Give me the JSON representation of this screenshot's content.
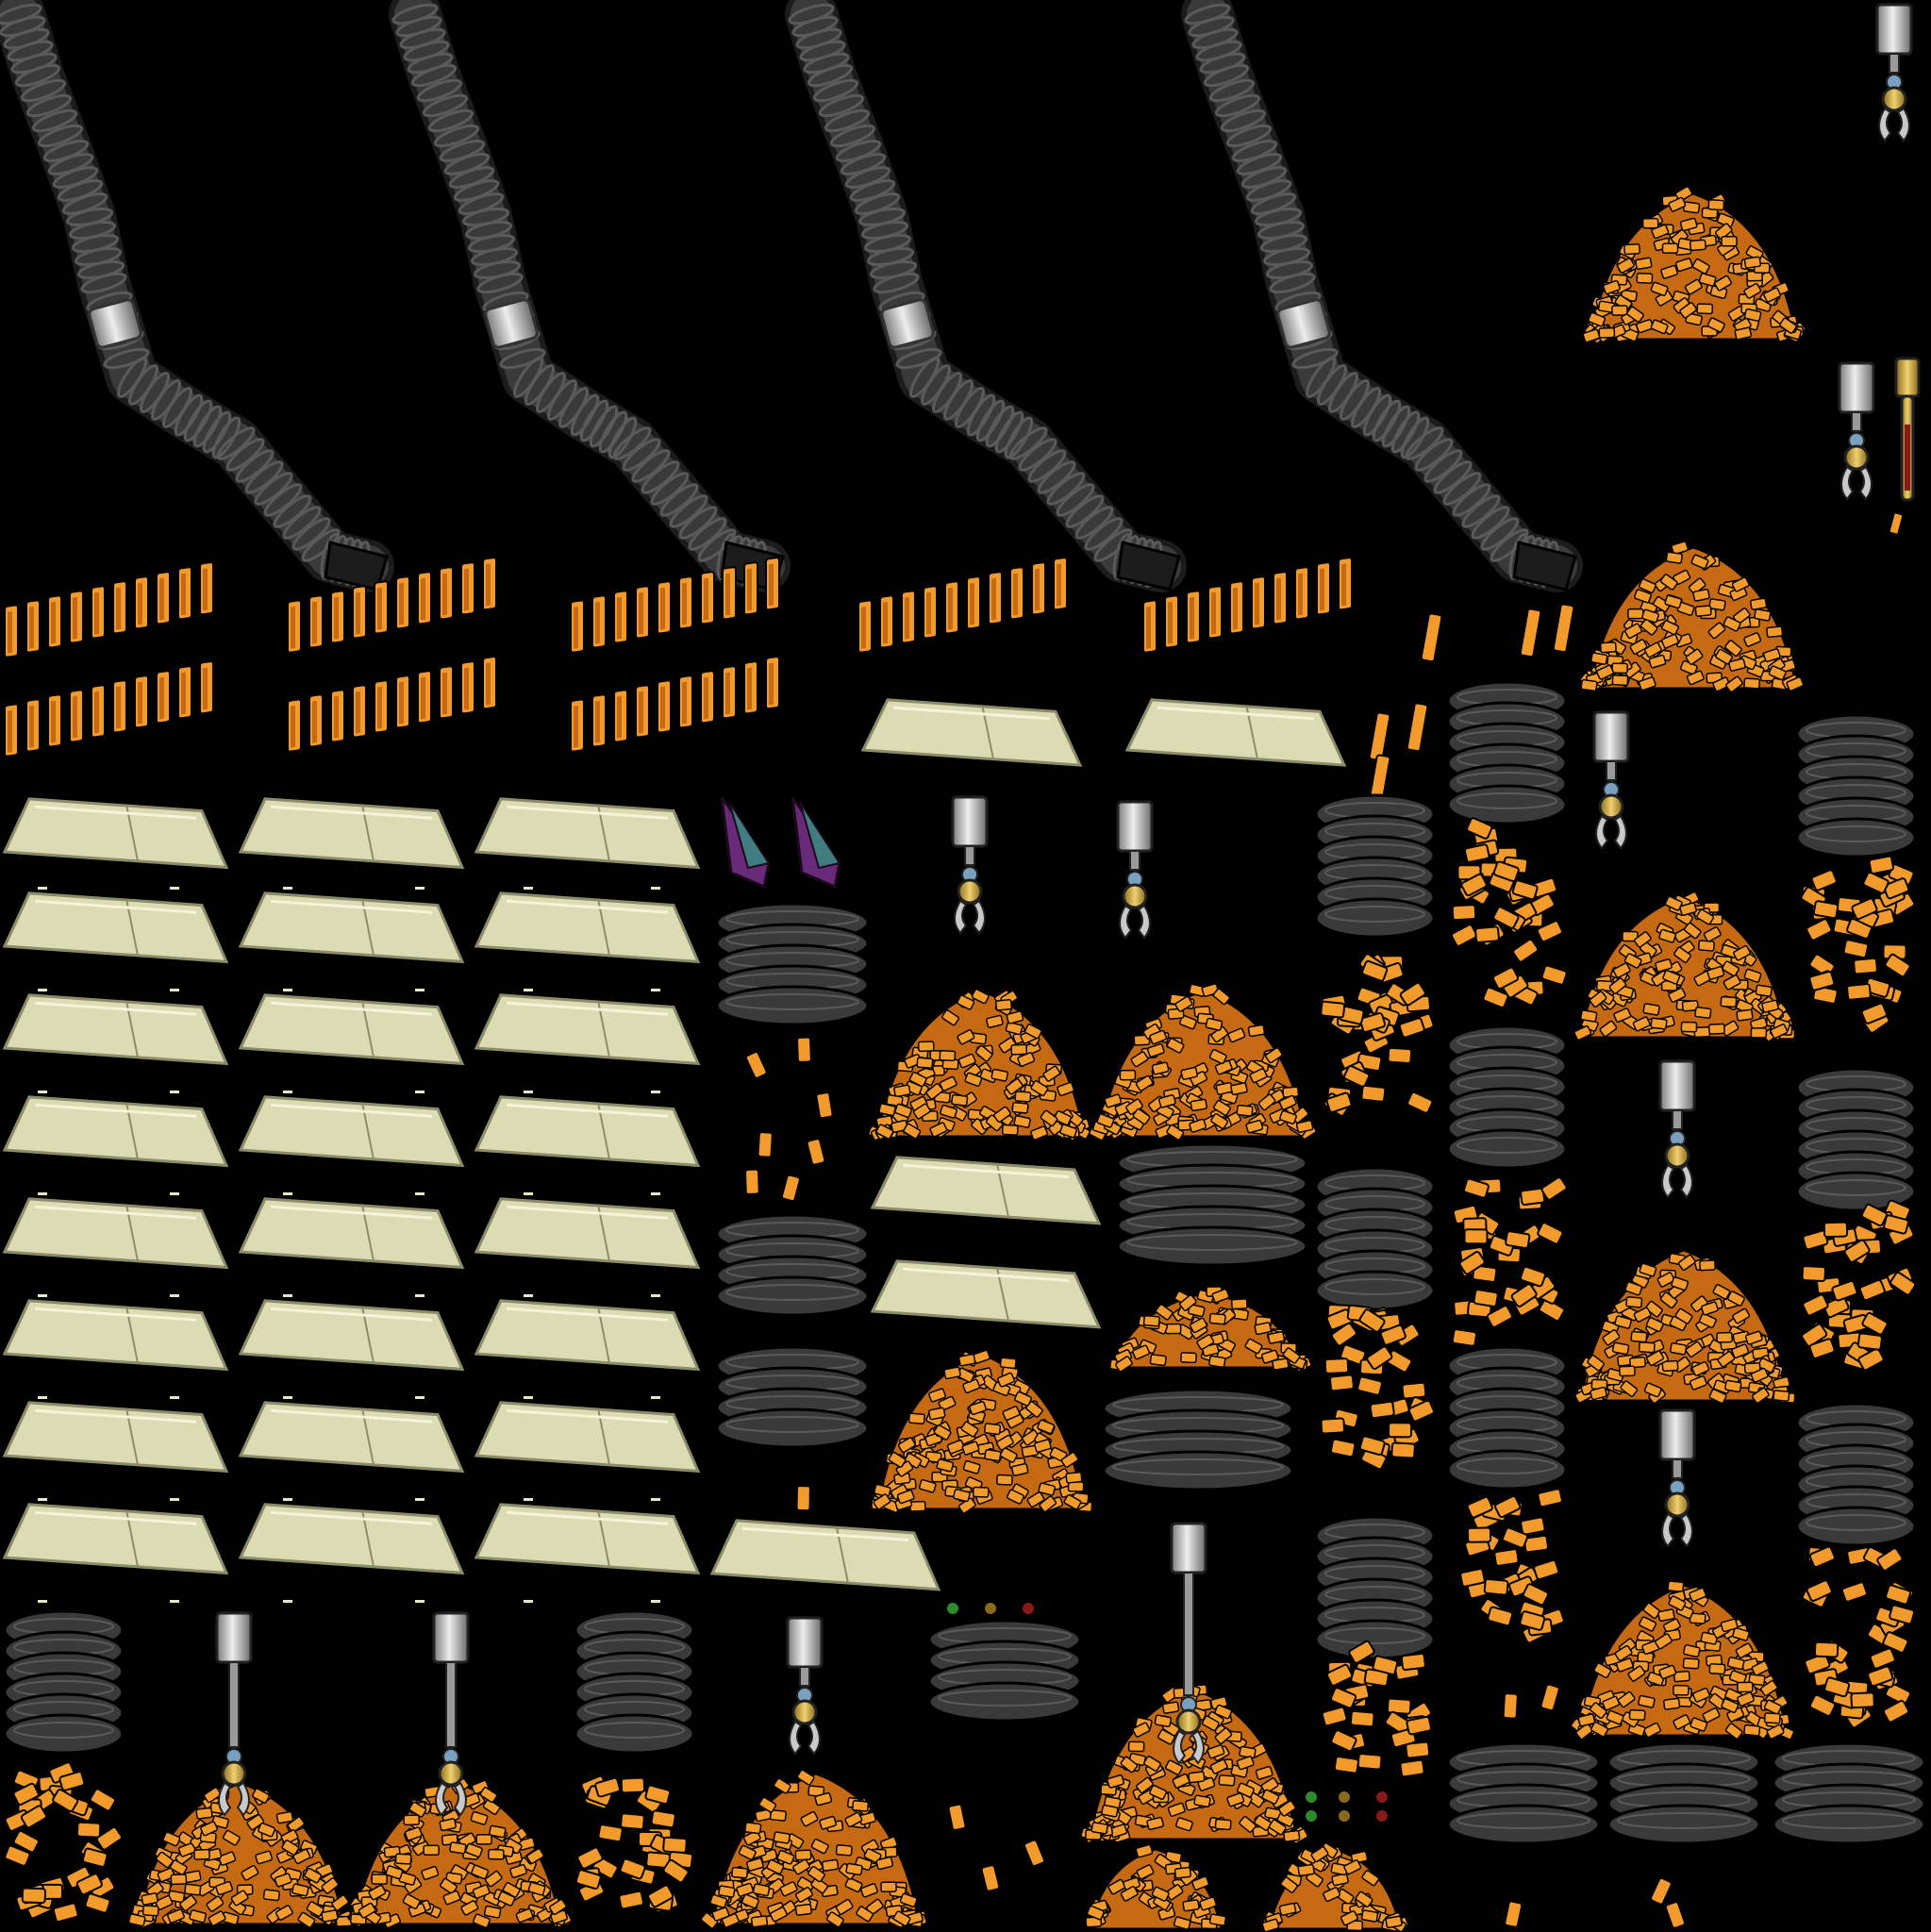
{
  "sheet": {
    "kind": "sprite-atlas",
    "background": "#000000",
    "has_visible_text": false
  },
  "palette": {
    "hose_dark": "#1c1c1c",
    "hose_mid": "#3a3a3a",
    "hose_light": "#5a5a5a",
    "clamp": "#b8b8b8",
    "ore_orange": "#f39a2c",
    "ore_shade": "#c56a12",
    "panel_fill": "#dcdcb4",
    "panel_line": "#8c8c6a",
    "crystal_purple": "#6a2a7a",
    "crystal_teal": "#3f7d80",
    "claw_steel": "#c9c9c9",
    "claw_brass": "#d9b24a",
    "lamp_green": "#2d8a2d",
    "lamp_amber": "#8a6a1a",
    "lamp_red": "#8a1a1a"
  },
  "sprites": [
    {
      "type": "hose",
      "name": "hose-segment-1",
      "count": 1
    },
    {
      "type": "hose",
      "name": "hose-segment-2",
      "count": 1
    },
    {
      "type": "hose",
      "name": "hose-segment-3",
      "count": 1
    },
    {
      "type": "hose",
      "name": "hose-segment-4",
      "count": 1
    },
    {
      "type": "ore-row",
      "name": "ore-bar-strip",
      "count": 10
    },
    {
      "type": "panel",
      "name": "glass-panel",
      "count": 28
    },
    {
      "type": "crystal",
      "name": "crystal-shard",
      "count": 2
    },
    {
      "type": "coil",
      "name": "black-coil",
      "count": 14
    },
    {
      "type": "ore-column",
      "name": "ore-column",
      "count": 9
    },
    {
      "type": "ore-pile",
      "name": "ore-pile",
      "count": 16
    },
    {
      "type": "claw",
      "name": "grabber-claw",
      "count": 12
    },
    {
      "type": "lamp",
      "name": "indicator-lamp",
      "count": 9
    },
    {
      "type": "torch",
      "name": "brass-torch",
      "count": 1
    }
  ]
}
